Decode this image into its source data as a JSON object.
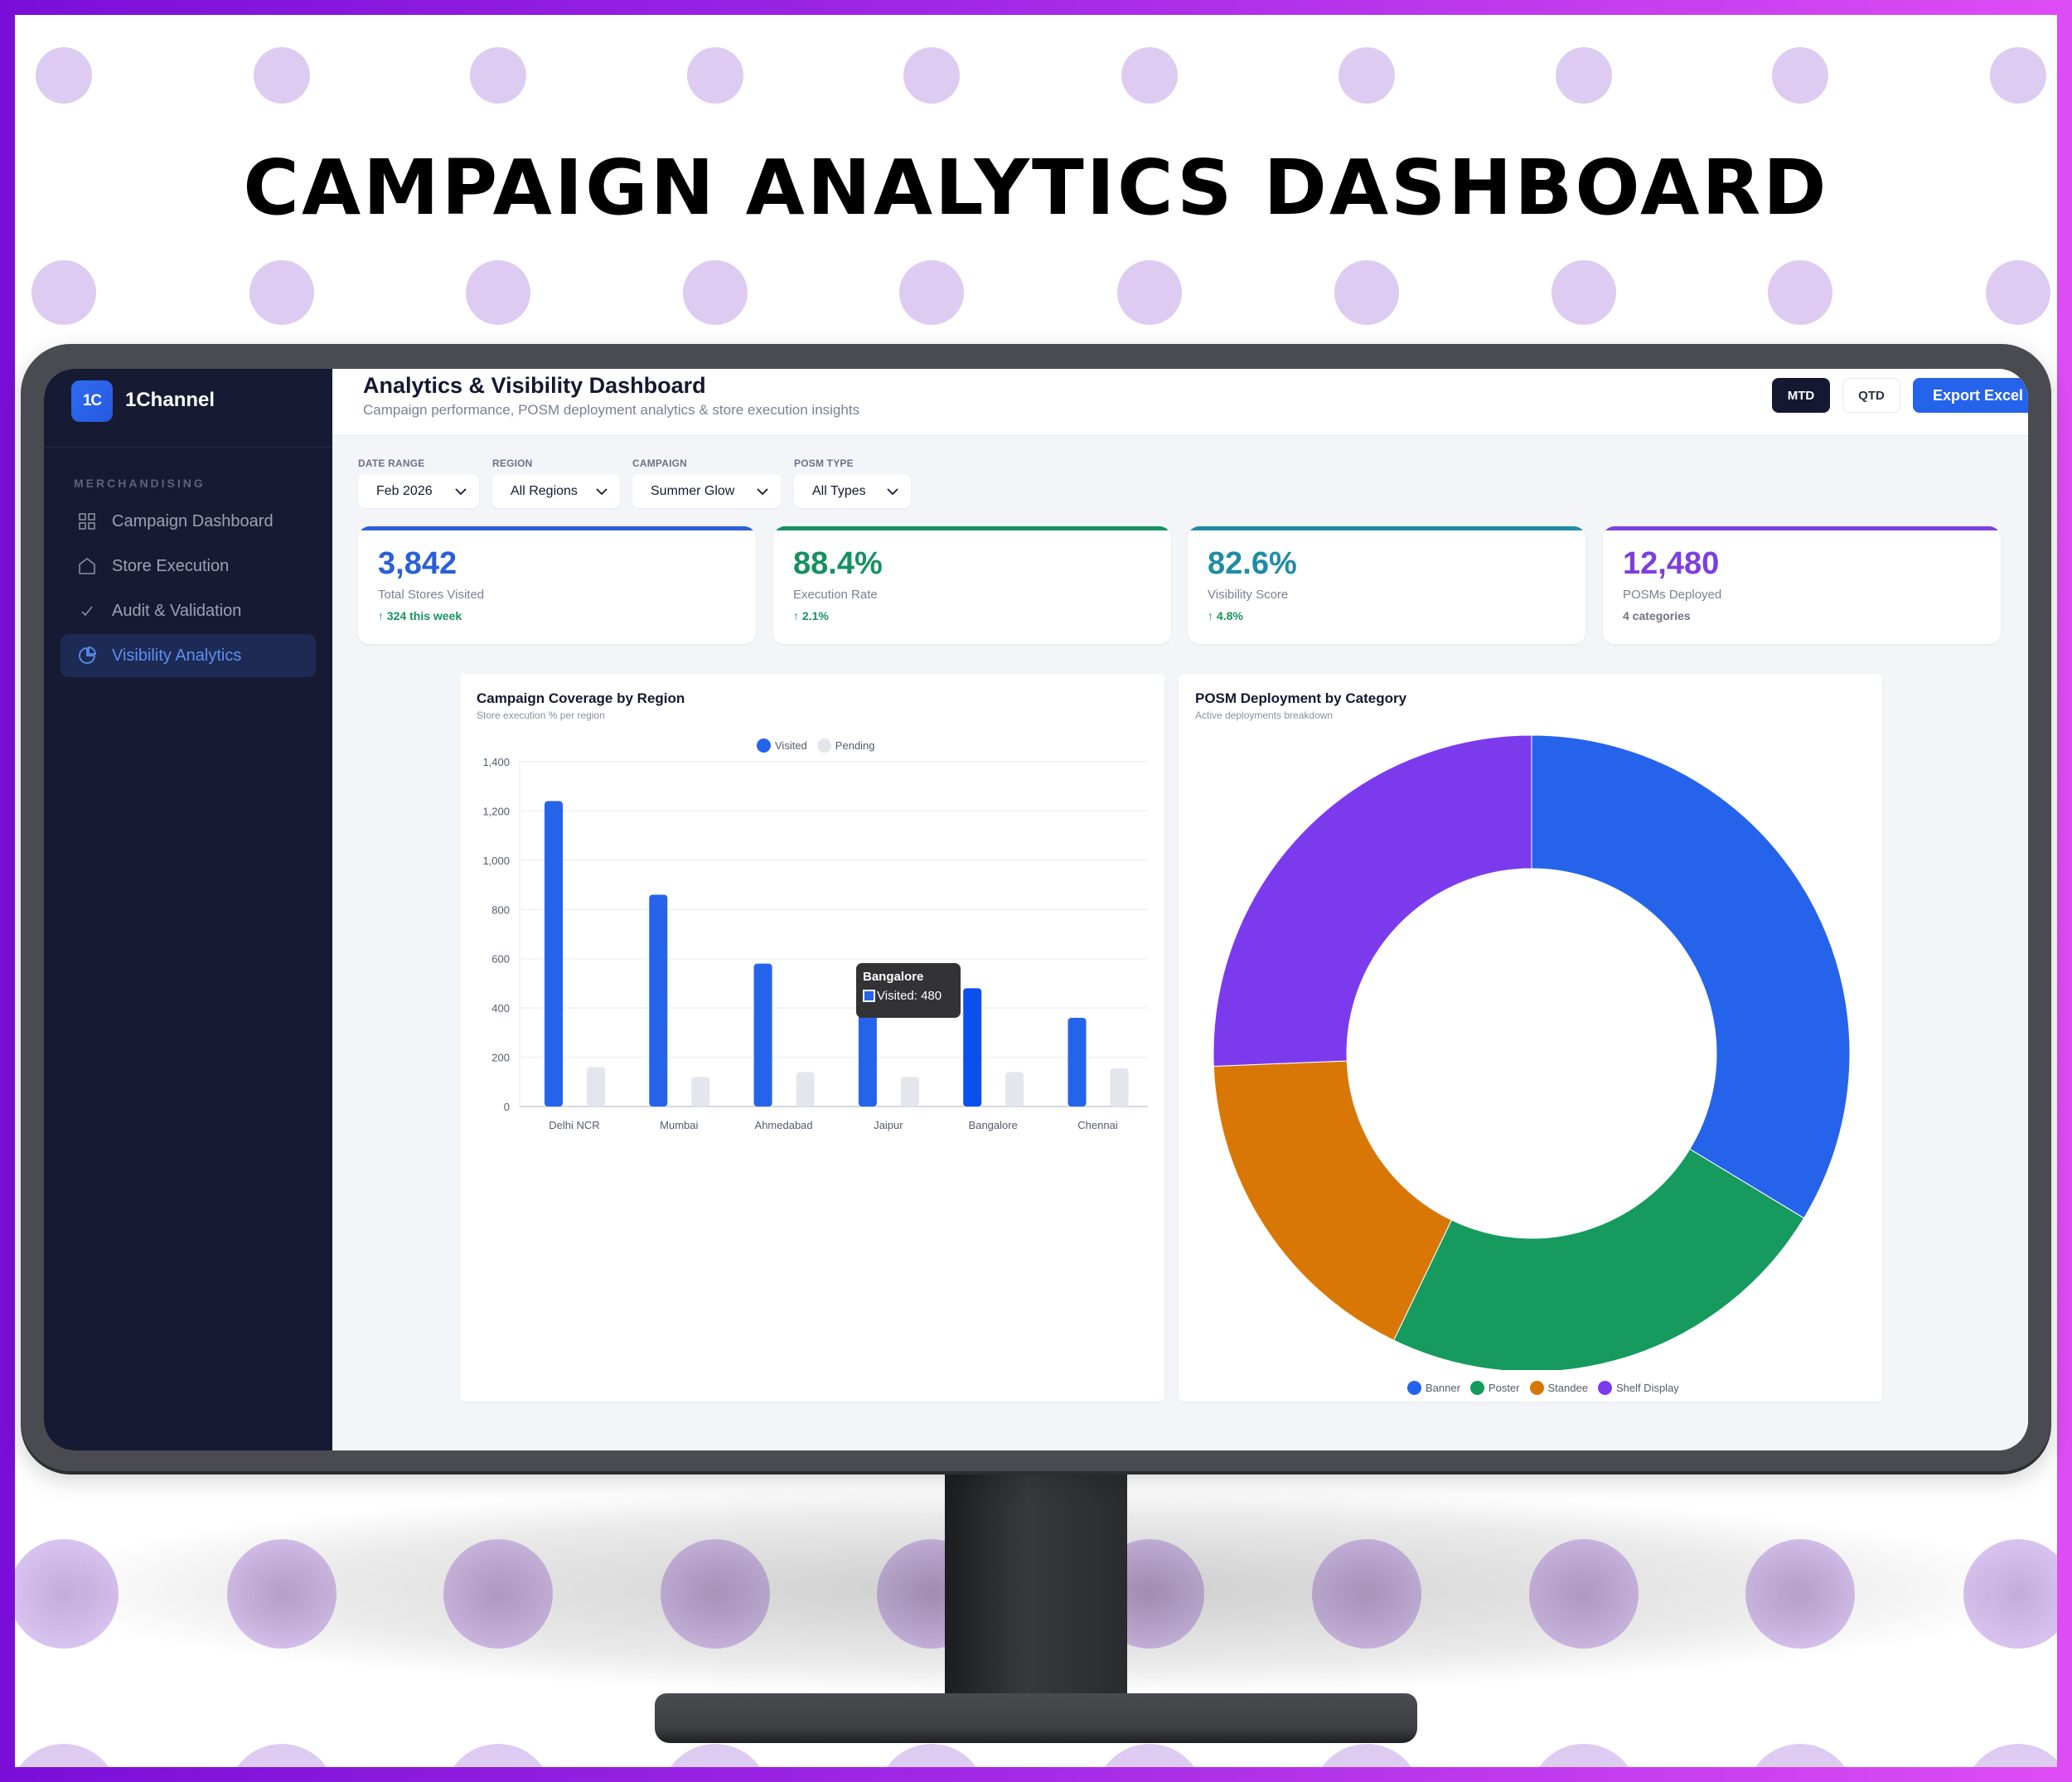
{
  "banner": {
    "title": "CAMPAIGN ANALYTICS DASHBOARD",
    "border_gradient": [
      "#7A0ED8",
      "#DE4CF5"
    ],
    "dot_color": "#DECBF1"
  },
  "sidebar": {
    "logo_text": "1C",
    "brand": "1Channel",
    "section_label": "MERCHANDISING",
    "items": [
      {
        "label": "Campaign Dashboard",
        "icon": "grid-icon",
        "active": false
      },
      {
        "label": "Store Execution",
        "icon": "home-icon",
        "active": false
      },
      {
        "label": "Audit & Validation",
        "icon": "check-icon",
        "active": false
      },
      {
        "label": "Visibility Analytics",
        "icon": "pie-chart-icon",
        "active": true
      }
    ]
  },
  "header": {
    "title": "Analytics & Visibility Dashboard",
    "subtitle": "Campaign performance, POSM deployment analytics & store execution insights",
    "period_buttons": [
      {
        "label": "MTD",
        "active": true
      },
      {
        "label": "QTD",
        "active": false
      }
    ],
    "export_label": "Export Excel"
  },
  "filters": [
    {
      "label": "DATE RANGE",
      "value": "Feb 2026"
    },
    {
      "label": "REGION",
      "value": "All Regions"
    },
    {
      "label": "CAMPAIGN",
      "value": "Summer Glow"
    },
    {
      "label": "POSM TYPE",
      "value": "All Types"
    }
  ],
  "kpis": [
    {
      "value": "3,842",
      "label": "Total Stores Visited",
      "delta": "↑ 324 this week",
      "color": "#2A5FD8"
    },
    {
      "value": "88.4%",
      "label": "Execution Rate",
      "delta": "↑ 2.1%",
      "color": "#169160"
    },
    {
      "value": "82.6%",
      "label": "Visibility Score",
      "delta": "↑ 4.8%",
      "color": "#1E8CA6"
    },
    {
      "value": "12,480",
      "label": "POSMs Deployed",
      "delta": "4 categories",
      "color": "#7B3FE0"
    }
  ],
  "bar_chart": {
    "title": "Campaign Coverage by Region",
    "subtitle": "Store execution % per region",
    "legend": [
      {
        "label": "Visited",
        "color": "#2563EB"
      },
      {
        "label": "Pending",
        "color": "#E3E6EC"
      }
    ],
    "tooltip": {
      "title": "Bangalore",
      "row": "Visited: 480"
    }
  },
  "donut_chart": {
    "title": "POSM Deployment by Category",
    "subtitle": "Active deployments breakdown",
    "legend": [
      {
        "label": "Banner",
        "color": "#2563EB"
      },
      {
        "label": "Poster",
        "color": "#169A5E"
      },
      {
        "label": "Standee",
        "color": "#D97706"
      },
      {
        "label": "Shelf Display",
        "color": "#7C3AED"
      }
    ]
  },
  "chart_data": [
    {
      "type": "bar",
      "title": "Campaign Coverage by Region",
      "subtitle": "Store execution % per region",
      "categories": [
        "Delhi NCR",
        "Mumbai",
        "Ahmedabad",
        "Jaipur",
        "Bangalore",
        "Chennai"
      ],
      "series": [
        {
          "name": "Visited",
          "color": "#2563EB",
          "values": [
            1240,
            860,
            580,
            420,
            480,
            360
          ]
        },
        {
          "name": "Pending",
          "color": "#E3E6EC",
          "values": [
            160,
            120,
            140,
            120,
            140,
            155
          ]
        }
      ],
      "xlabel": "",
      "ylabel": "",
      "yticks": [
        0,
        200,
        400,
        600,
        800,
        1000,
        1200,
        1400
      ],
      "ytick_labels": [
        "0",
        "200",
        "400",
        "600",
        "800",
        "1,000",
        "1,200",
        "1,400"
      ],
      "ylim": [
        0,
        1400
      ],
      "grid": true,
      "legend_position": "top",
      "annotations": [
        {
          "type": "tooltip",
          "category": "Bangalore",
          "text": "Visited: 480"
        }
      ]
    },
    {
      "type": "pie",
      "donut": true,
      "title": "POSM Deployment by Category",
      "subtitle": "Active deployments breakdown",
      "categories": [
        "Banner",
        "Poster",
        "Standee",
        "Shelf Display"
      ],
      "values": [
        4200,
        2930,
        2150,
        3200
      ],
      "colors": [
        "#2563EB",
        "#169A5E",
        "#D97706",
        "#7C3AED"
      ],
      "legend_position": "bottom"
    }
  ]
}
